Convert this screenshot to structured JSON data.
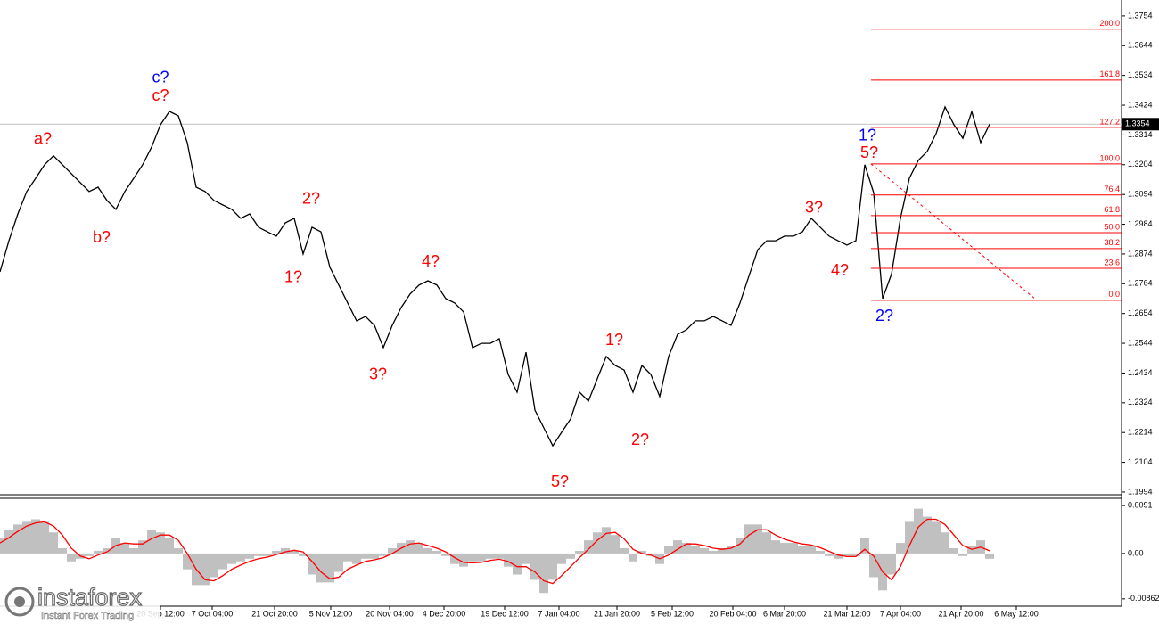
{
  "chart_data": [
    {
      "type": "line",
      "color": "#000000",
      "x": [
        0,
        1,
        2,
        3,
        4,
        5,
        6,
        7,
        8,
        9,
        10,
        11,
        12,
        13,
        14,
        15,
        16,
        17,
        18,
        19,
        20,
        21,
        22,
        23,
        24,
        25,
        26,
        27,
        28,
        29,
        30,
        31,
        32,
        33,
        34,
        35,
        36,
        37,
        38,
        39,
        40,
        41,
        42,
        43,
        44,
        45,
        46,
        47,
        48,
        49,
        50,
        51,
        52,
        53,
        54,
        55,
        56,
        57,
        58,
        59,
        60,
        61,
        62,
        63,
        64,
        65,
        66,
        67,
        68,
        69,
        70,
        71,
        72,
        73,
        74,
        75,
        76,
        77,
        78,
        79,
        80,
        81,
        82,
        83,
        84,
        85,
        86,
        87,
        88,
        89,
        90,
        91,
        92,
        93,
        94,
        95,
        96,
        97,
        98,
        99,
        100,
        101,
        102,
        103,
        104,
        105,
        106,
        107,
        108,
        109,
        110,
        111
      ],
      "values": [
        1.2808,
        1.2923,
        1.3022,
        1.3105,
        1.3154,
        1.3204,
        1.3237,
        1.3204,
        1.3171,
        1.3138,
        1.3105,
        1.3121,
        1.3072,
        1.3039,
        1.3105,
        1.3154,
        1.3204,
        1.3269,
        1.3352,
        1.3401,
        1.3385,
        1.3286,
        1.3121,
        1.3105,
        1.3072,
        1.3055,
        1.3039,
        1.3006,
        1.3022,
        1.2973,
        1.2956,
        1.294,
        1.2989,
        1.3006,
        1.2874,
        1.2973,
        1.2956,
        1.2825,
        1.2759,
        1.2693,
        1.2627,
        1.2643,
        1.261,
        1.2528,
        1.261,
        1.2676,
        1.2726,
        1.2759,
        1.2775,
        1.2759,
        1.2709,
        1.2693,
        1.266,
        1.2528,
        1.2544,
        1.2544,
        1.2561,
        1.2429,
        1.2363,
        1.2511,
        1.2297,
        1.2231,
        1.2165,
        1.2215,
        1.2264,
        1.2363,
        1.233,
        1.2413,
        1.2495,
        1.2462,
        1.2445,
        1.2363,
        1.2462,
        1.2429,
        1.2347,
        1.2495,
        1.2577,
        1.2594,
        1.2627,
        1.2627,
        1.2643,
        1.2627,
        1.261,
        1.2693,
        1.2792,
        1.289,
        1.2923,
        1.2923,
        1.294,
        1.294,
        1.2956,
        1.3006,
        1.2973,
        1.294,
        1.2923,
        1.2907,
        1.2923,
        1.3204,
        1.31,
        1.2709,
        1.28,
        1.3006,
        1.3154,
        1.322,
        1.3253,
        1.3319,
        1.3418,
        1.3352,
        1.3302,
        1.34,
        1.3286,
        1.3354
      ],
      "xlim": [
        0,
        125.8
      ],
      "ylim": [
        1.1984,
        1.3813
      ],
      "yticks": [
        1.3754,
        1.3644,
        1.3534,
        1.3424,
        1.3314,
        1.3204,
        1.3094,
        1.2984,
        1.2874,
        1.2764,
        1.2654,
        1.2544,
        1.2434,
        1.2324,
        1.2214,
        1.2104,
        1.1994
      ],
      "current_price": 1.3354,
      "fibonacci": {
        "start_x": 97.7,
        "color": "#ff0000",
        "levels": [
          {
            "label": "200.0",
            "price": 1.3705
          },
          {
            "label": "161.8",
            "price": 1.3517
          },
          {
            "label": "127.2",
            "price": 1.3342
          },
          {
            "label": "100.0",
            "price": 1.3207
          },
          {
            "label": "76.4",
            "price": 1.3092
          },
          {
            "label": "61.8",
            "price": 1.3016
          },
          {
            "label": "50.0",
            "price": 1.2953
          },
          {
            "label": "38.2",
            "price": 1.2894
          },
          {
            "label": "23.6",
            "price": 1.2821
          },
          {
            "label": "0.0",
            "price": 1.2703
          }
        ]
      },
      "trendline": {
        "x": [
          97.7,
          116.3
        ],
        "y": [
          1.3207,
          1.2703
        ],
        "color": "#ff0000"
      },
      "annotations": [
        {
          "text": "a?",
          "color": "#ff0000",
          "x": 4.8,
          "y": 1.3296
        },
        {
          "text": "b?",
          "color": "#ff0000",
          "x": 11.4,
          "y": 1.2933
        },
        {
          "text": "c?",
          "color": "#ff0000",
          "x": 18.0,
          "y": 1.3457
        },
        {
          "text": "c?",
          "color": "#0000ff",
          "x": 18.0,
          "y": 1.3523
        },
        {
          "text": "2?",
          "color": "#ff0000",
          "x": 34.9,
          "y": 1.3075
        },
        {
          "text": "1?",
          "color": "#ff0000",
          "x": 32.9,
          "y": 1.2785
        },
        {
          "text": "3?",
          "color": "#ff0000",
          "x": 42.4,
          "y": 1.2426
        },
        {
          "text": "4?",
          "color": "#ff0000",
          "x": 48.3,
          "y": 1.2844
        },
        {
          "text": "5?",
          "color": "#ff0000",
          "x": 62.8,
          "y": 1.203
        },
        {
          "text": "1?",
          "color": "#ff0000",
          "x": 68.9,
          "y": 1.2554
        },
        {
          "text": "2?",
          "color": "#ff0000",
          "x": 71.8,
          "y": 1.2185
        },
        {
          "text": "3?",
          "color": "#ff0000",
          "x": 91.3,
          "y": 1.3042
        },
        {
          "text": "4?",
          "color": "#ff0000",
          "x": 94.2,
          "y": 1.2811
        },
        {
          "text": "1?",
          "color": "#0000ff",
          "x": 97.3,
          "y": 1.3309
        },
        {
          "text": "5?",
          "color": "#ff0000",
          "x": 97.5,
          "y": 1.3246
        },
        {
          "text": "2?",
          "color": "#0000ff",
          "x": 99.2,
          "y": 1.2643
        }
      ]
    },
    {
      "type": "macd",
      "color": "#c0c0c0",
      "signal_color": "#ff0000",
      "x": [
        0,
        1,
        2,
        3,
        4,
        5,
        6,
        7,
        8,
        9,
        10,
        11,
        12,
        13,
        14,
        15,
        16,
        17,
        18,
        19,
        20,
        21,
        22,
        23,
        24,
        25,
        26,
        27,
        28,
        29,
        30,
        31,
        32,
        33,
        34,
        35,
        36,
        37,
        38,
        39,
        40,
        41,
        42,
        43,
        44,
        45,
        46,
        47,
        48,
        49,
        50,
        51,
        52,
        53,
        54,
        55,
        56,
        57,
        58,
        59,
        60,
        61,
        62,
        63,
        64,
        65,
        66,
        67,
        68,
        69,
        70,
        71,
        72,
        73,
        74,
        75,
        76,
        77,
        78,
        79,
        80,
        81,
        82,
        83,
        84,
        85,
        86,
        87,
        88,
        89,
        90,
        91,
        92,
        93,
        94,
        95,
        96,
        97,
        98,
        99,
        100,
        101,
        102,
        103,
        104,
        105,
        106,
        107,
        108,
        109,
        110,
        111
      ],
      "values": [
        0.003,
        0.0045,
        0.0055,
        0.006,
        0.0065,
        0.006,
        0.004,
        0.001,
        -0.0015,
        -0.001,
        -0.0005,
        0.0005,
        0.001,
        0.003,
        0.002,
        0.001,
        0.0025,
        0.0045,
        0.004,
        0.003,
        0.001,
        -0.003,
        -0.006,
        -0.006,
        -0.0045,
        -0.003,
        -0.002,
        -0.0015,
        -0.001,
        -0.0005,
        -0.0005,
        0.0005,
        0.001,
        0.0005,
        -0.0005,
        -0.004,
        -0.0055,
        -0.0055,
        -0.0035,
        -0.0015,
        -0.002,
        -0.001,
        -0.001,
        -0.0005,
        0.001,
        0.002,
        0.0025,
        0.002,
        0.001,
        0.0005,
        -0.0005,
        -0.002,
        -0.0025,
        -0.0015,
        -0.0015,
        -0.001,
        -0.001,
        -0.0025,
        -0.004,
        -0.002,
        -0.005,
        -0.0075,
        -0.005,
        -0.002,
        -0.001,
        0.0005,
        0.0025,
        0.004,
        0.005,
        0.0035,
        0.001,
        -0.0015,
        0.0005,
        -0.0005,
        -0.002,
        0.0015,
        0.0025,
        0.002,
        0.0015,
        0.001,
        0.0005,
        0.001,
        0.0015,
        0.003,
        0.0055,
        0.0055,
        0.004,
        0.0025,
        0.002,
        0.002,
        0.0015,
        0.0015,
        0.0005,
        -0.0005,
        -0.001,
        -0.0005,
        -0.0005,
        0.003,
        -0.0045,
        -0.007,
        -0.004,
        0.002,
        0.006,
        0.0085,
        0.007,
        0.006,
        0.004,
        0.001,
        -0.0005,
        0.0015,
        0.0025,
        -0.001
      ],
      "signal": [
        0.002,
        0.003,
        0.0042,
        0.0052,
        0.0058,
        0.006,
        0.0052,
        0.0035,
        0.001,
        -0.0005,
        -0.001,
        -0.0003,
        0.0003,
        0.0015,
        0.002,
        0.0018,
        0.0018,
        0.0028,
        0.0035,
        0.0035,
        0.0025,
        0.0,
        -0.003,
        -0.005,
        -0.0052,
        -0.0042,
        -0.003,
        -0.0022,
        -0.0015,
        -0.001,
        -0.0007,
        -0.0002,
        0.0003,
        0.0006,
        0.0003,
        -0.0015,
        -0.0035,
        -0.0048,
        -0.0045,
        -0.003,
        -0.0022,
        -0.0015,
        -0.0012,
        -0.0008,
        0.0,
        0.001,
        0.0018,
        0.002,
        0.0015,
        0.001,
        0.0003,
        -0.0008,
        -0.0017,
        -0.0018,
        -0.0017,
        -0.0013,
        -0.0011,
        -0.0015,
        -0.0025,
        -0.0025,
        -0.0035,
        -0.0052,
        -0.0057,
        -0.0042,
        -0.0025,
        -0.0008,
        0.0008,
        0.0025,
        0.0038,
        0.004,
        0.0028,
        0.0008,
        0.0,
        -0.0003,
        -0.001,
        -0.0003,
        0.0008,
        0.0018,
        0.0018,
        0.0015,
        0.001,
        0.0008,
        0.001,
        0.0018,
        0.0035,
        0.0045,
        0.0045,
        0.0035,
        0.0027,
        0.0022,
        0.0018,
        0.0016,
        0.0011,
        0.0004,
        -0.0003,
        -0.0006,
        -0.0006,
        0.0008,
        -0.0005,
        -0.0035,
        -0.005,
        -0.0025,
        0.0015,
        0.005,
        0.0065,
        0.0065,
        0.0055,
        0.0035,
        0.0015,
        0.0008,
        0.0012,
        0.0005
      ],
      "xlim": [
        0,
        125.8
      ],
      "ylim": [
        -0.01,
        0.0103
      ],
      "yticks": [
        0.0091,
        {
          "value": 0,
          "label": "0.00"
        },
        -0.00862
      ],
      "xticks": [
        {
          "value": 18,
          "label": "20 Sep 12:00"
        },
        {
          "value": 23.8,
          "label": "7 Oct 04:00"
        },
        {
          "value": 30.8,
          "label": "21 Oct 20:00"
        },
        {
          "value": 37.1,
          "label": "5 Nov 12:00"
        },
        {
          "value": 43.7,
          "label": "20 Nov 04:00"
        },
        {
          "value": 49.8,
          "label": "4 Dec 20:00"
        },
        {
          "value": 56.6,
          "label": "19 Dec 12:00"
        },
        {
          "value": 62.7,
          "label": "7 Jan 04:00"
        },
        {
          "value": 69.2,
          "label": "21 Jan 20:00"
        },
        {
          "value": 75.4,
          "label": "5 Feb 12:00"
        },
        {
          "value": 82.2,
          "label": "20 Feb 04:00"
        },
        {
          "value": 88.0,
          "label": "6 Mar 20:00"
        },
        {
          "value": 95.0,
          "label": "21 Mar 12:00"
        },
        {
          "value": 101.0,
          "label": "7 Apr 04:00"
        },
        {
          "value": 107.8,
          "label": "21 Apr 20:00"
        },
        {
          "value": 114.0,
          "label": "6 May 12:00"
        }
      ]
    }
  ],
  "watermark": {
    "brand": "instaforex",
    "tagline": "Instant Forex Trading"
  }
}
